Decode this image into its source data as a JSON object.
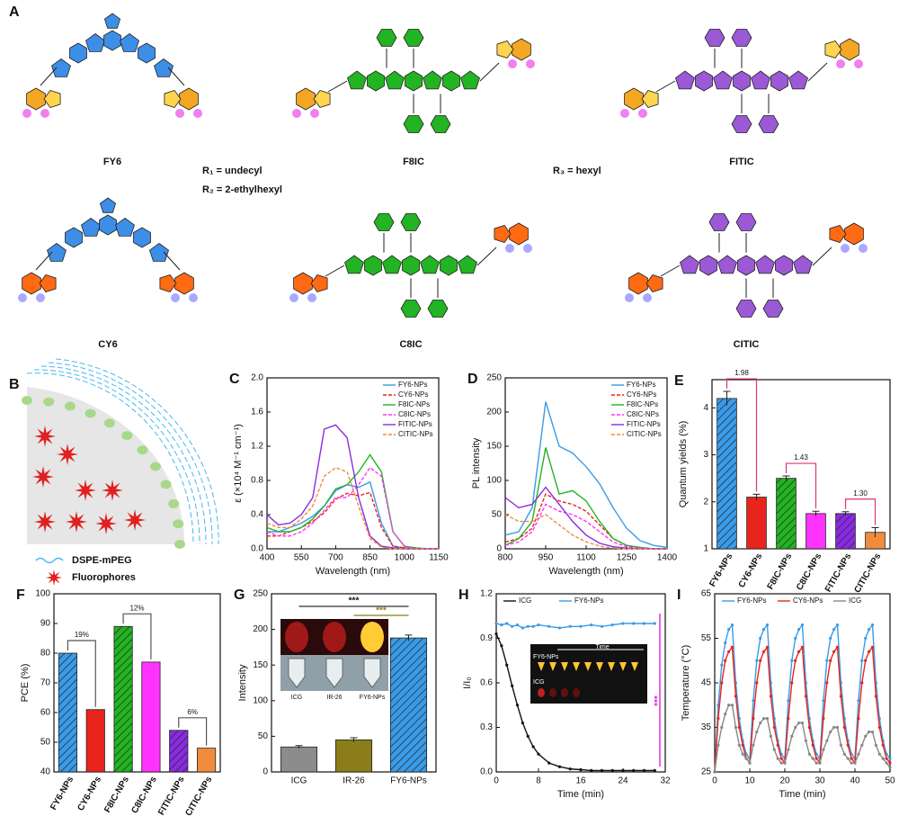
{
  "structures": {
    "panel": "A",
    "molecules": [
      "FY6",
      "F8IC",
      "FITIC",
      "CY6",
      "C8IC",
      "CITIC"
    ],
    "substituents": [
      "R₁ = undecyl",
      "R₂ = 2-ethylhexyl",
      "R₃ = hexyl"
    ]
  },
  "nanoparticle": {
    "panel": "B",
    "labels": [
      "DSPE-mPEG",
      "Fluorophores"
    ]
  },
  "chart_data": [
    {
      "panel": "C",
      "type": "line",
      "xlabel": "Wavelength (nm)",
      "ylabel": "ε (×10⁴ M⁻¹ cm⁻¹)",
      "legend": "upper right",
      "x": [
        400,
        450,
        500,
        550,
        600,
        650,
        700,
        750,
        800,
        850,
        900,
        950,
        1000,
        1050,
        1100,
        1150
      ],
      "xlim": [
        400,
        1150
      ],
      "xticks": [
        400,
        550,
        700,
        850,
        1000,
        1150
      ],
      "ylim": [
        0,
        2
      ],
      "yticks": [
        {
          "value": 0,
          "label": "0.0"
        },
        0.4,
        0.8,
        1.2,
        1.6,
        {
          "value": 2,
          "label": "2.0"
        }
      ],
      "series": [
        {
          "name": "FY6-NPs",
          "color": "#3a9be8",
          "style": "solid",
          "values": [
            0.2,
            0.2,
            0.25,
            0.3,
            0.38,
            0.5,
            0.68,
            0.75,
            0.72,
            0.78,
            0.3,
            0.03,
            0.01,
            0,
            0,
            0
          ]
        },
        {
          "name": "CY6-NPs",
          "color": "#e8241c",
          "style": "dashed",
          "values": [
            0.15,
            0.15,
            0.2,
            0.25,
            0.32,
            0.42,
            0.58,
            0.65,
            0.62,
            0.66,
            0.25,
            0.03,
            0.01,
            0,
            0,
            0
          ]
        },
        {
          "name": "F8IC-NPs",
          "color": "#22b422",
          "style": "solid",
          "values": [
            0.25,
            0.2,
            0.2,
            0.25,
            0.35,
            0.5,
            0.7,
            0.75,
            0.9,
            1.1,
            0.9,
            0.2,
            0.03,
            0.01,
            0,
            0
          ]
        },
        {
          "name": "C8IC-NPs",
          "color": "#ff33ff",
          "style": "dashed",
          "values": [
            0.2,
            0.15,
            0.15,
            0.2,
            0.3,
            0.45,
            0.6,
            0.6,
            0.75,
            0.95,
            0.85,
            0.2,
            0.03,
            0,
            0,
            0
          ]
        },
        {
          "name": "FITIC-NPs",
          "color": "#8a2be2",
          "style": "solid",
          "values": [
            0.4,
            0.28,
            0.3,
            0.4,
            0.6,
            1.4,
            1.45,
            1.3,
            0.6,
            0.15,
            0.03,
            0.01,
            0,
            0,
            0,
            0
          ]
        },
        {
          "name": "CITIC-NPs",
          "color": "#f08c3c",
          "style": "dashed",
          "values": [
            0.3,
            0.25,
            0.25,
            0.35,
            0.5,
            0.85,
            0.95,
            0.9,
            0.5,
            0.12,
            0.02,
            0,
            0,
            0,
            0,
            0
          ]
        }
      ]
    },
    {
      "panel": "D",
      "type": "line",
      "xlabel": "Wavelength (nm)",
      "ylabel": "PL intensity",
      "legend": "upper right",
      "x": [
        800,
        850,
        900,
        950,
        1000,
        1050,
        1100,
        1150,
        1200,
        1250,
        1300,
        1350,
        1400
      ],
      "xlim": [
        800,
        1400
      ],
      "xticks": [
        800,
        950,
        1100,
        1250,
        1400
      ],
      "ylim": [
        0,
        250
      ],
      "yticks": [
        0,
        50,
        100,
        150,
        200,
        250
      ],
      "series": [
        {
          "name": "FY6-NPs",
          "color": "#3a9be8",
          "style": "solid",
          "values": [
            20,
            25,
            60,
            215,
            150,
            140,
            120,
            95,
            60,
            30,
            12,
            5,
            2
          ]
        },
        {
          "name": "CY6-NPs",
          "color": "#e8241c",
          "style": "dashed",
          "values": [
            10,
            15,
            30,
            80,
            70,
            65,
            55,
            35,
            15,
            5,
            2,
            0,
            0
          ]
        },
        {
          "name": "F8IC-NPs",
          "color": "#22b422",
          "style": "solid",
          "values": [
            5,
            15,
            40,
            148,
            80,
            85,
            70,
            40,
            15,
            5,
            2,
            0,
            0
          ]
        },
        {
          "name": "C8IC-NPs",
          "color": "#ff33ff",
          "style": "dashed",
          "values": [
            5,
            10,
            25,
            65,
            55,
            50,
            40,
            25,
            10,
            3,
            1,
            0,
            0
          ]
        },
        {
          "name": "FITIC-NPs",
          "color": "#8a2be2",
          "style": "solid",
          "values": [
            75,
            60,
            65,
            90,
            65,
            40,
            20,
            8,
            3,
            1,
            0,
            0,
            0
          ]
        },
        {
          "name": "CITIC-NPs",
          "color": "#f08c3c",
          "style": "dashed",
          "values": [
            50,
            40,
            40,
            50,
            35,
            20,
            10,
            4,
            1,
            0,
            0,
            0,
            0
          ]
        }
      ]
    },
    {
      "panel": "E",
      "type": "bar",
      "ylabel": "Quantum yields (%)",
      "categories": [
        "FY6-NPs",
        "CY6-NPs",
        "F8IC-NPs",
        "C8IC-NPs",
        "FITIC-NPs",
        "CITIC-NPs"
      ],
      "values": [
        4.2,
        2.1,
        2.5,
        1.75,
        1.75,
        1.35
      ],
      "errors": [
        0.15,
        0.06,
        0.05,
        0.05,
        0.04,
        0.1
      ],
      "colors": [
        "#3a9be8",
        "#e8241c",
        "#22b422",
        "#ff33ff",
        "#8a2be2",
        "#f08c3c"
      ],
      "hatch": [
        true,
        false,
        true,
        false,
        true,
        false
      ],
      "ylim": [
        1,
        4.6
      ],
      "yticks": [
        1,
        2,
        3,
        4
      ],
      "annotations": [
        "1.98",
        "1.43",
        "1.30"
      ],
      "annotation_color": "#e0307a"
    },
    {
      "panel": "F",
      "type": "bar",
      "ylabel": "PCE (%)",
      "categories": [
        "FY6-NPs",
        "CY6-NPs",
        "F8IC-NPs",
        "C8IC-NPs",
        "FITIC-NPs",
        "CITIC-NPs"
      ],
      "values": [
        80,
        61,
        89,
        77,
        54,
        48
      ],
      "colors": [
        "#3a9be8",
        "#e8241c",
        "#22b422",
        "#ff33ff",
        "#8a2be2",
        "#f08c3c"
      ],
      "hatch": [
        true,
        false,
        true,
        false,
        true,
        false
      ],
      "ylim": [
        40,
        100
      ],
      "yticks": [
        40,
        50,
        60,
        70,
        80,
        90,
        100
      ],
      "annotations": [
        "19%",
        "12%",
        "6%"
      ],
      "annotation_color": "#555555"
    },
    {
      "panel": "G",
      "type": "bar",
      "ylabel": "Intensity",
      "categories": [
        "ICG",
        "IR-26",
        "FY6-NPs"
      ],
      "values": [
        35,
        45,
        188
      ],
      "errors": [
        2,
        3,
        4
      ],
      "colors": [
        "#8c8c8c",
        "#8b7d1a",
        "#3a9be8"
      ],
      "hatch": [
        false,
        false,
        true
      ],
      "ylim": [
        0,
        250
      ],
      "yticks": [
        0,
        50,
        100,
        150,
        200,
        250
      ],
      "annotations": [
        "***",
        "***"
      ],
      "inset_labels": [
        "ICG",
        "IR-26",
        "FY6-NPs"
      ]
    },
    {
      "panel": "H",
      "type": "line",
      "xlabel": "Time (min)",
      "ylabel": "I/I₀",
      "legend": "top",
      "marker": true,
      "x": [
        0,
        1,
        2,
        3,
        4,
        5,
        6,
        7,
        8,
        10,
        12,
        14,
        16,
        18,
        20,
        22,
        24,
        26,
        28,
        30
      ],
      "xlim": [
        0,
        32
      ],
      "xticks": [
        0,
        8,
        16,
        24,
        32
      ],
      "ylim": [
        0,
        1.2
      ],
      "yticks": [
        {
          "value": 0,
          "label": "0.0"
        },
        0.3,
        0.6,
        0.9,
        1.2
      ],
      "series": [
        {
          "name": "ICG",
          "color": "#111111",
          "style": "solid",
          "values": [
            0.93,
            0.85,
            0.72,
            0.58,
            0.45,
            0.33,
            0.24,
            0.17,
            0.12,
            0.06,
            0.035,
            0.02,
            0.015,
            0.01,
            0.01,
            0.01,
            0.01,
            0.01,
            0.01,
            0.01
          ]
        },
        {
          "name": "FY6-NPs",
          "color": "#3a9be8",
          "style": "solid",
          "values": [
            1.0,
            0.99,
            1.0,
            0.98,
            0.99,
            0.97,
            0.98,
            0.98,
            0.99,
            0.98,
            0.97,
            0.98,
            0.98,
            0.99,
            0.98,
            0.99,
            1.0,
            1.0,
            1.0,
            1.0
          ]
        }
      ],
      "annotations": [
        "***"
      ],
      "inset_labels": [
        "Time",
        "FY6-NPs",
        "ICG"
      ]
    },
    {
      "panel": "I",
      "type": "line",
      "xlabel": "Time (min)",
      "ylabel": "Temperature (°C)",
      "legend": "top",
      "marker": true,
      "x": [
        0,
        1,
        2,
        3,
        4,
        5,
        6,
        7,
        8,
        9,
        10,
        11,
        12,
        13,
        14,
        15,
        16,
        17,
        18,
        19,
        20,
        21,
        22,
        23,
        24,
        25,
        26,
        27,
        28,
        29,
        30,
        31,
        32,
        33,
        34,
        35,
        36,
        37,
        38,
        39,
        40,
        41,
        42,
        43,
        44,
        45,
        46,
        47,
        48,
        49,
        50
      ],
      "xlim": [
        0,
        50
      ],
      "xticks": [
        0,
        10,
        20,
        30,
        40,
        50
      ],
      "ylim": [
        25,
        65
      ],
      "yticks": [
        25,
        35,
        45,
        55,
        65
      ],
      "series": [
        {
          "name": "FY6-NPs",
          "color": "#3a9be8",
          "style": "solid",
          "values": [
            25,
            40,
            49,
            54,
            57,
            58,
            45,
            37,
            32,
            29,
            28,
            41,
            50,
            55,
            57,
            58,
            45,
            37,
            32,
            29,
            28,
            41,
            50,
            55,
            57,
            58,
            45,
            37,
            32,
            29,
            28,
            41,
            50,
            55,
            57,
            58,
            45,
            37,
            32,
            29,
            28,
            41,
            50,
            55,
            57,
            58,
            45,
            37,
            32,
            29,
            28
          ]
        },
        {
          "name": "CY6-NPs",
          "color": "#e8241c",
          "style": "solid",
          "values": [
            25,
            37,
            45,
            50,
            52,
            53,
            42,
            35,
            31,
            28,
            27,
            37,
            45,
            50,
            52,
            53,
            42,
            35,
            31,
            28,
            27,
            37,
            45,
            50,
            52,
            53,
            42,
            35,
            31,
            28,
            27,
            37,
            45,
            50,
            52,
            53,
            42,
            35,
            31,
            28,
            27,
            37,
            45,
            50,
            52,
            53,
            42,
            35,
            31,
            28,
            27
          ]
        },
        {
          "name": "ICG",
          "color": "#888888",
          "style": "solid",
          "values": [
            25,
            31,
            35,
            38,
            40,
            40,
            35,
            31,
            29,
            28,
            27,
            31,
            34,
            36,
            37,
            37,
            33,
            30,
            28,
            27,
            27,
            30,
            33,
            35,
            36,
            36,
            32,
            29,
            28,
            27,
            27,
            30,
            32,
            34,
            35,
            35,
            31,
            29,
            28,
            27,
            27,
            29,
            31,
            33,
            34,
            34,
            31,
            29,
            28,
            27,
            26
          ]
        }
      ]
    }
  ]
}
